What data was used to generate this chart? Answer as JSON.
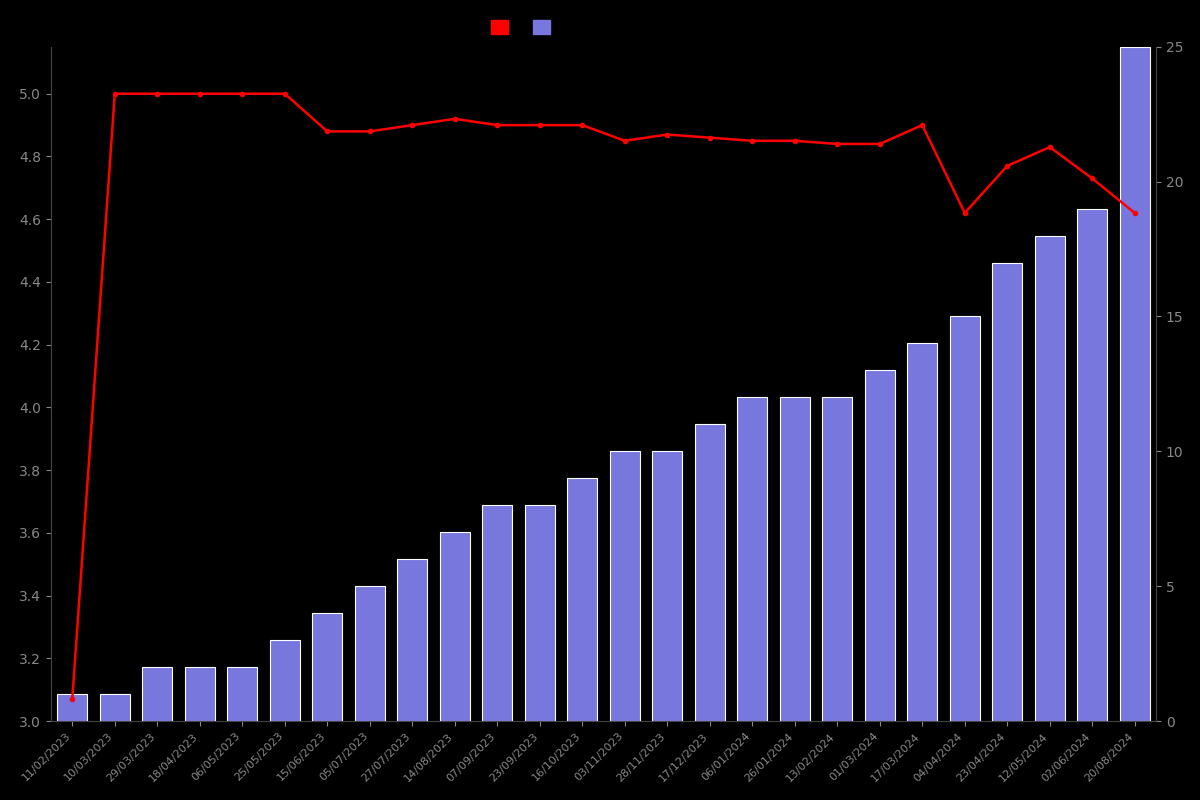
{
  "dates": [
    "11/02/2023",
    "10/03/2023",
    "29/03/2023",
    "18/04/2023",
    "06/05/2023",
    "25/05/2023",
    "15/06/2023",
    "05/07/2023",
    "27/07/2023",
    "14/08/2023",
    "07/09/2023",
    "23/09/2023",
    "16/10/2023",
    "03/11/2023",
    "28/11/2023",
    "17/12/2023",
    "06/01/2024",
    "26/01/2024",
    "13/02/2024",
    "01/03/2024",
    "17/03/2024",
    "04/04/2024",
    "23/04/2024",
    "12/05/2024",
    "02/06/2024",
    "20/08/2024"
  ],
  "bar_values": [
    1,
    1,
    2,
    2,
    2,
    3,
    4,
    5,
    6,
    7,
    8,
    8,
    9,
    10,
    10,
    11,
    12,
    12,
    12,
    13,
    14,
    15,
    17,
    18,
    19,
    25
  ],
  "rating_values": [
    3.07,
    5.0,
    5.0,
    5.0,
    5.0,
    5.0,
    4.88,
    4.88,
    4.9,
    4.92,
    4.9,
    4.9,
    4.9,
    4.85,
    4.87,
    4.86,
    4.85,
    4.85,
    4.84,
    4.84,
    4.9,
    4.62,
    4.77,
    4.83,
    4.73,
    4.62
  ],
  "bg_color": "#000000",
  "bar_color": "#7777dd",
  "bar_edge_color": "#ffffff",
  "line_color": "#ff0000",
  "tick_color": "#888888",
  "grid_color": "#222222",
  "ylim_left": [
    3.0,
    5.15
  ],
  "ylim_right": [
    0,
    25
  ],
  "yticks_left": [
    3.0,
    3.2,
    3.4,
    3.6,
    3.8,
    4.0,
    4.2,
    4.4,
    4.6,
    4.8,
    5.0
  ],
  "yticks_right": [
    0,
    5,
    10,
    15,
    20,
    25
  ],
  "figsize": [
    12,
    8
  ],
  "dpi": 100
}
